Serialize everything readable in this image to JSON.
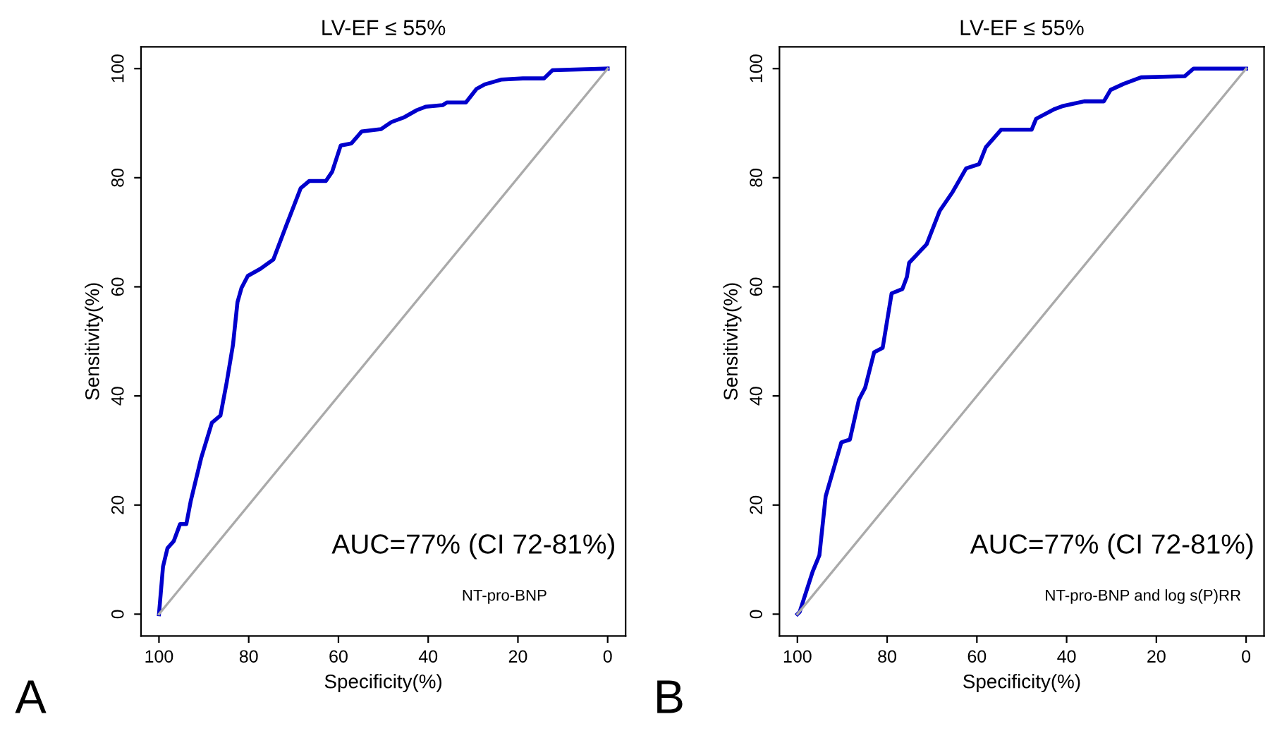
{
  "chart_data": [
    {
      "type": "line",
      "title": "LV-EF ≤ 55%",
      "xlabel": "Specificity(%)",
      "ylabel": "Sensitivity(%)",
      "xlim": [
        104,
        -4
      ],
      "ylim": [
        -4,
        104
      ],
      "xticks": [
        100,
        80,
        60,
        40,
        20,
        0
      ],
      "yticks": [
        0,
        20,
        40,
        60,
        80,
        100
      ],
      "grid": false,
      "legend": false,
      "annotations": [
        "AUC=77% (CI 72-81%)",
        "NT-pro-BNP",
        "A"
      ],
      "series": [
        {
          "color": "#0000cc",
          "x": [
            100,
            99.1,
            98.1,
            96.7,
            95.3,
            93.9,
            92.9,
            90.6,
            88.2,
            86.3,
            84.9,
            83.5,
            82.5,
            81.6,
            80.2,
            77.4,
            74.5,
            71.7,
            68.4,
            66.5,
            62.8,
            61.4,
            59.5,
            57.1,
            54.8,
            50.5,
            48.2,
            45.3,
            42.5,
            40.6,
            36.8,
            35.8,
            31.6,
            29.2,
            27.4,
            23.6,
            18.9,
            14.2,
            12.3,
            0
          ],
          "values": [
            0,
            8.7,
            12.1,
            13.4,
            16.5,
            16.5,
            20.8,
            28.6,
            35.1,
            36.4,
            42.5,
            49.4,
            57.2,
            59.8,
            62,
            63.3,
            65,
            71.1,
            78.1,
            79.4,
            79.4,
            81.1,
            85.9,
            86.3,
            88.5,
            88.9,
            90.2,
            91.1,
            92.4,
            93,
            93.3,
            93.8,
            93.8,
            96.3,
            97.1,
            98,
            98.2,
            98.2,
            99.7,
            100
          ]
        },
        {
          "color": "#aaaaaa",
          "x": [
            100,
            0
          ],
          "values": [
            0,
            100
          ]
        }
      ]
    },
    {
      "type": "line",
      "title": "LV-EF ≤ 55%",
      "xlabel": "Specificity(%)",
      "ylabel": "Sensitivity(%)",
      "xlim": [
        104,
        -4
      ],
      "ylim": [
        -4,
        104
      ],
      "xticks": [
        100,
        80,
        60,
        40,
        20,
        0
      ],
      "yticks": [
        0,
        20,
        40,
        60,
        80,
        100
      ],
      "grid": false,
      "legend": false,
      "annotations": [
        "AUC=77% (CI 72-81%)",
        "NT-pro-BNP and log s(P)RR",
        "B"
      ],
      "series": [
        {
          "color": "#0000cc",
          "x": [
            100,
            99.5,
            96.6,
            95.1,
            93.7,
            90.2,
            88.3,
            86.3,
            84.9,
            82.9,
            81,
            79,
            76.6,
            75.6,
            75.1,
            71.2,
            68.3,
            65.4,
            62.4,
            59.5,
            58,
            54.6,
            47.8,
            46.8,
            42.9,
            41,
            36.1,
            31.7,
            30.2,
            27.3,
            23.4,
            13.7,
            11.7,
            0
          ],
          "values": [
            0,
            0.4,
            7.8,
            10.8,
            21.6,
            31.5,
            32,
            39.3,
            41.5,
            48,
            48.8,
            58.8,
            59.6,
            61.8,
            64.4,
            67.8,
            73.9,
            77.4,
            81.7,
            82.5,
            85.6,
            88.8,
            88.8,
            90.8,
            92.5,
            93.1,
            94,
            94,
            96.1,
            97.2,
            98.4,
            98.6,
            100,
            100
          ]
        },
        {
          "color": "#aaaaaa",
          "x": [
            100,
            0
          ],
          "values": [
            0,
            100
          ]
        }
      ]
    }
  ]
}
